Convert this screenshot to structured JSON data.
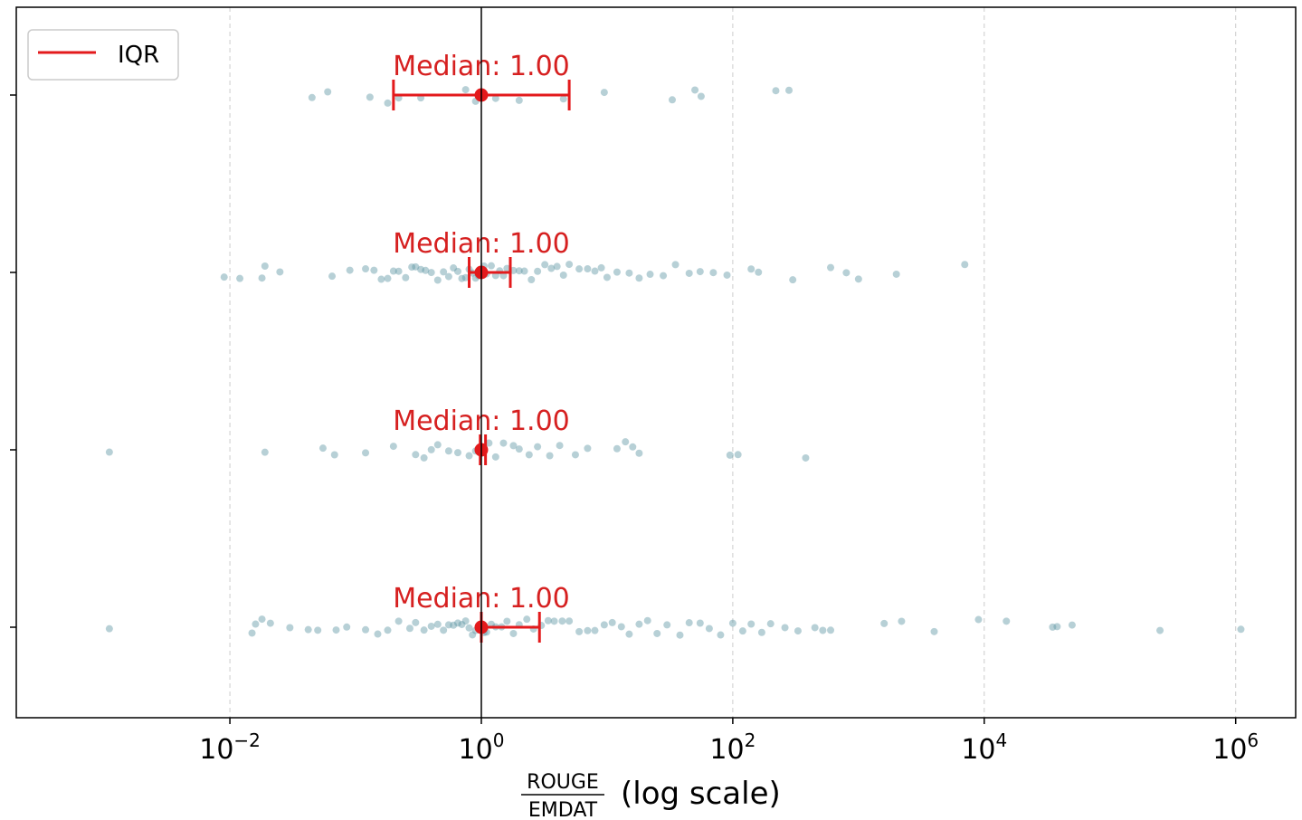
{
  "chart_data": {
    "type": "scatter",
    "x_scale": "log",
    "xlim": [
      0.0002,
      3000000
    ],
    "x_ticks": [
      0.01,
      1,
      100,
      10000,
      1000000
    ],
    "x_tick_labels": [
      {
        "base": "10",
        "exp": "−2"
      },
      {
        "base": "10",
        "exp": "0"
      },
      {
        "base": "10",
        "exp": "2"
      },
      {
        "base": "10",
        "exp": "4"
      },
      {
        "base": "10",
        "exp": "6"
      }
    ],
    "xlabel": {
      "numerator": "ROUGE",
      "denominator": "EMDAT",
      "suffix": "(log scale)"
    },
    "grid": "x-dashed",
    "reference_line_x": 1,
    "legend": {
      "label": "IQR",
      "position": "top-left",
      "color": "#e31a1c"
    },
    "colors": {
      "points": "#5f96a3",
      "iqr": "#e31a1c",
      "median_text": "#d62020"
    },
    "rows": [
      {
        "median": 1.0,
        "median_label": "Median: 1.00",
        "q1": 0.2,
        "q3": 5.0,
        "points": [
          0.045,
          0.06,
          0.13,
          0.18,
          0.22,
          0.33,
          0.75,
          0.9,
          1.3,
          2.0,
          4.5,
          9.5,
          33,
          50,
          56,
          220,
          280
        ]
      },
      {
        "median": 1.0,
        "median_label": "Median: 1.00",
        "q1": 0.8,
        "q3": 1.7,
        "points": [
          0.009,
          0.012,
          0.018,
          0.019,
          0.025,
          0.065,
          0.09,
          0.12,
          0.14,
          0.16,
          0.18,
          0.2,
          0.22,
          0.25,
          0.28,
          0.3,
          0.33,
          0.36,
          0.4,
          0.45,
          0.5,
          0.55,
          0.6,
          0.65,
          0.7,
          0.75,
          0.8,
          0.85,
          0.9,
          0.95,
          1.05,
          1.1,
          1.2,
          1.3,
          1.4,
          1.5,
          1.6,
          1.8,
          2.0,
          2.2,
          2.5,
          2.8,
          3.2,
          3.6,
          4.0,
          4.5,
          5.0,
          6.0,
          7.0,
          8.0,
          9.0,
          10,
          12,
          15,
          18,
          22,
          28,
          35,
          45,
          55,
          70,
          90,
          140,
          160,
          300,
          600,
          800,
          1000,
          2000,
          7000
        ]
      },
      {
        "median": 1.0,
        "median_label": "Median: 1.00",
        "q1": 0.98,
        "q3": 1.08,
        "points": [
          0.0011,
          0.019,
          0.055,
          0.068,
          0.12,
          0.2,
          0.3,
          0.35,
          0.4,
          0.45,
          0.55,
          0.65,
          0.8,
          0.9,
          1.02,
          1.15,
          1.3,
          1.5,
          1.8,
          2.0,
          2.4,
          2.8,
          3.5,
          4.2,
          5.6,
          7.0,
          12,
          14,
          16,
          18,
          95,
          110,
          380
        ]
      },
      {
        "median": 1.0,
        "median_label": "Median: 1.00",
        "q1": 1.0,
        "q3": 2.9,
        "points": [
          0.0011,
          0.015,
          0.016,
          0.018,
          0.021,
          0.03,
          0.042,
          0.05,
          0.07,
          0.085,
          0.12,
          0.15,
          0.18,
          0.22,
          0.27,
          0.3,
          0.35,
          0.4,
          0.45,
          0.5,
          0.55,
          0.6,
          0.65,
          0.7,
          0.75,
          0.8,
          0.85,
          0.9,
          0.95,
          1.05,
          1.1,
          1.2,
          1.3,
          1.45,
          1.6,
          1.8,
          2.0,
          2.3,
          2.6,
          3.0,
          3.4,
          3.8,
          4.4,
          5.0,
          6.0,
          7.0,
          8.0,
          9.5,
          11,
          13,
          15,
          18,
          21,
          25,
          30,
          38,
          45,
          55,
          65,
          80,
          100,
          120,
          140,
          170,
          200,
          260,
          330,
          450,
          520,
          600,
          1600,
          2200,
          4000,
          9000,
          15000,
          35000,
          38000,
          50000,
          250000,
          1100000
        ]
      }
    ]
  }
}
